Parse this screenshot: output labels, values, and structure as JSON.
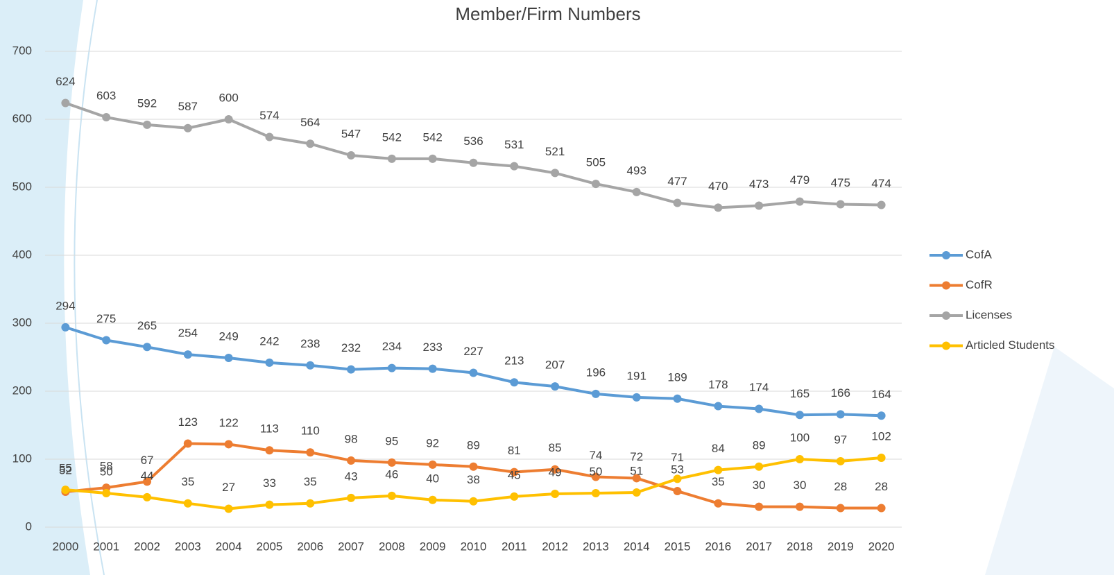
{
  "chart_data": {
    "type": "line",
    "title": "Member/Firm Numbers",
    "categories": [
      "2000",
      "2001",
      "2002",
      "2003",
      "2004",
      "2005",
      "2006",
      "2007",
      "2008",
      "2009",
      "2010",
      "2011",
      "2012",
      "2013",
      "2014",
      "2015",
      "2016",
      "2017",
      "2018",
      "2019",
      "2020"
    ],
    "series": [
      {
        "name": "CofA",
        "color": "#5b9bd5",
        "values": [
          294,
          275,
          265,
          254,
          249,
          242,
          238,
          232,
          234,
          233,
          227,
          213,
          207,
          196,
          191,
          189,
          178,
          174,
          165,
          166,
          164
        ]
      },
      {
        "name": "CofR",
        "color": "#ed7d31",
        "values": [
          52,
          58,
          67,
          123,
          122,
          113,
          110,
          98,
          95,
          92,
          89,
          81,
          85,
          74,
          72,
          53,
          35,
          30,
          30,
          28,
          28
        ]
      },
      {
        "name": "Licenses",
        "color": "#a5a5a5",
        "values": [
          624,
          603,
          592,
          587,
          600,
          574,
          564,
          547,
          542,
          542,
          536,
          531,
          521,
          505,
          493,
          477,
          470,
          473,
          479,
          475,
          474
        ]
      },
      {
        "name": "Articled Students",
        "color": "#ffc000",
        "values": [
          55,
          50,
          44,
          35,
          27,
          33,
          35,
          43,
          46,
          40,
          38,
          45,
          49,
          50,
          51,
          71,
          84,
          89,
          100,
          97,
          102
        ]
      }
    ],
    "ylim": [
      0,
      700
    ],
    "yticks": [
      0,
      100,
      200,
      300,
      400,
      500,
      600,
      700
    ],
    "grid": true,
    "legend": "right"
  }
}
